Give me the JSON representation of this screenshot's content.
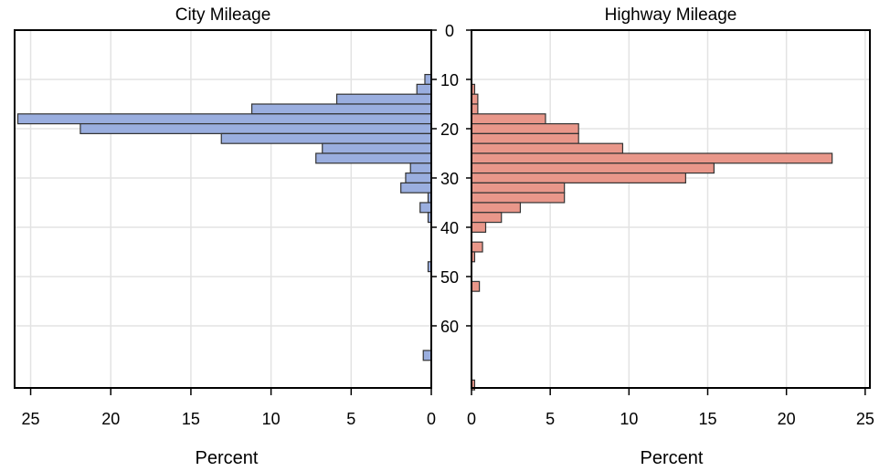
{
  "colors": {
    "city_bar": "#9aaedf",
    "highway_bar": "#e9978a",
    "bar_outline": "#333333",
    "grid": "#e3e3e3",
    "background": "#ffffff"
  },
  "chart_data": [
    {
      "type": "bar",
      "orientation": "horizontal",
      "bar_direction": "right-to-left",
      "title": "City Mileage",
      "xlabel": "Percent",
      "xlim": [
        0,
        26
      ],
      "x_ticks": [
        "25",
        "20",
        "15",
        "10",
        "5",
        "0"
      ],
      "x_tick_values": [
        25,
        20,
        15,
        10,
        5,
        0
      ],
      "bin_axis": "shared-center",
      "bin_width": 2,
      "grid": true,
      "bins": [
        {
          "mpg": 10,
          "percent": 0.4
        },
        {
          "mpg": 12,
          "percent": 0.9
        },
        {
          "mpg": 14,
          "percent": 5.9
        },
        {
          "mpg": 16,
          "percent": 11.2
        },
        {
          "mpg": 18,
          "percent": 25.8
        },
        {
          "mpg": 20,
          "percent": 21.9
        },
        {
          "mpg": 22,
          "percent": 13.1
        },
        {
          "mpg": 24,
          "percent": 6.8
        },
        {
          "mpg": 26,
          "percent": 7.2
        },
        {
          "mpg": 28,
          "percent": 1.3
        },
        {
          "mpg": 30,
          "percent": 1.6
        },
        {
          "mpg": 32,
          "percent": 1.9
        },
        {
          "mpg": 34,
          "percent": 0.2
        },
        {
          "mpg": 36,
          "percent": 0.7
        },
        {
          "mpg": 38,
          "percent": 0.2
        },
        {
          "mpg": 48,
          "percent": 0.2
        },
        {
          "mpg": 66,
          "percent": 0.5
        }
      ]
    },
    {
      "type": "bar",
      "orientation": "horizontal",
      "bar_direction": "left-to-right",
      "title": "Highway Mileage",
      "xlabel": "Percent",
      "xlim": [
        0,
        25.3
      ],
      "x_ticks": [
        "0",
        "5",
        "10",
        "15",
        "20",
        "25"
      ],
      "x_tick_values": [
        0,
        5,
        10,
        15,
        20,
        25
      ],
      "bin_axis": "shared-center",
      "bin_width": 2,
      "grid": true,
      "bins": [
        {
          "mpg": 12,
          "percent": 0.2
        },
        {
          "mpg": 14,
          "percent": 0.4
        },
        {
          "mpg": 16,
          "percent": 0.4
        },
        {
          "mpg": 18,
          "percent": 4.7
        },
        {
          "mpg": 20,
          "percent": 6.8
        },
        {
          "mpg": 22,
          "percent": 6.8
        },
        {
          "mpg": 24,
          "percent": 9.6
        },
        {
          "mpg": 26,
          "percent": 22.9
        },
        {
          "mpg": 28,
          "percent": 15.4
        },
        {
          "mpg": 30,
          "percent": 13.6
        },
        {
          "mpg": 32,
          "percent": 5.9
        },
        {
          "mpg": 34,
          "percent": 5.9
        },
        {
          "mpg": 36,
          "percent": 3.1
        },
        {
          "mpg": 38,
          "percent": 1.9
        },
        {
          "mpg": 40,
          "percent": 0.9
        },
        {
          "mpg": 44,
          "percent": 0.7
        },
        {
          "mpg": 46,
          "percent": 0.2
        },
        {
          "mpg": 52,
          "percent": 0.5
        },
        {
          "mpg": 72,
          "percent": 0.2
        }
      ]
    }
  ],
  "center_axis": {
    "ticks": [
      "0",
      "10",
      "20",
      "30",
      "40",
      "50",
      "60"
    ],
    "tick_values": [
      0,
      10,
      20,
      30,
      40,
      50,
      60
    ],
    "range": [
      0,
      72.6
    ]
  }
}
